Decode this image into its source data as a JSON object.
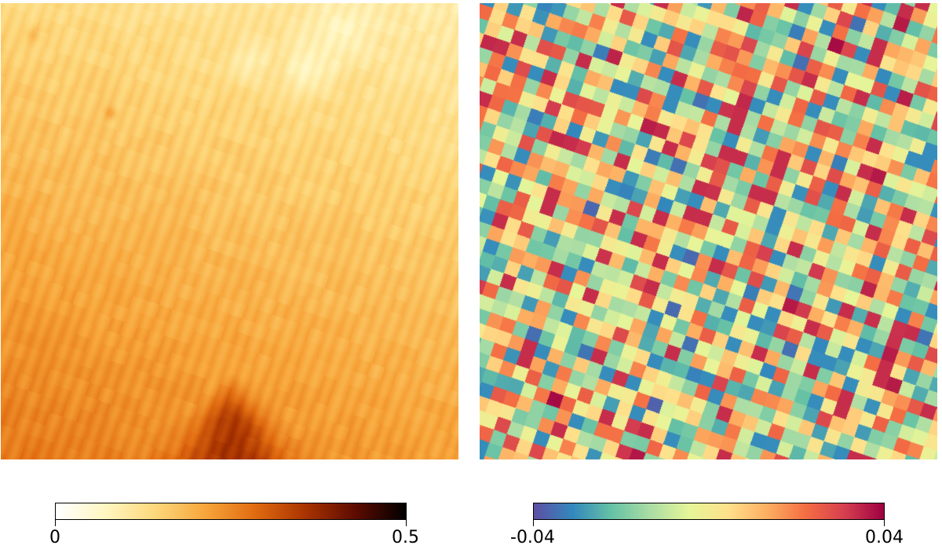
{
  "panels": {
    "left": {
      "colormap": "afmhot_r",
      "colorbar": {
        "min_label": "0",
        "max_label": "0.5",
        "range": [
          0,
          0.5
        ],
        "stops": [
          "#ffffff",
          "#fff6c0",
          "#fdd77a",
          "#f7a53a",
          "#e06a10",
          "#a83300",
          "#5c0b00",
          "#000000"
        ]
      }
    },
    "right": {
      "colormap": "Spectral_r",
      "colorbar": {
        "min_label": "-0.04",
        "max_label": "0.04",
        "range": [
          -0.04,
          0.04
        ],
        "stops": [
          "#5e4fa2",
          "#3288bd",
          "#66c2a5",
          "#abdda4",
          "#e6f598",
          "#fee08b",
          "#fdae61",
          "#f46d43",
          "#d53e4f",
          "#9e0142"
        ]
      }
    }
  }
}
